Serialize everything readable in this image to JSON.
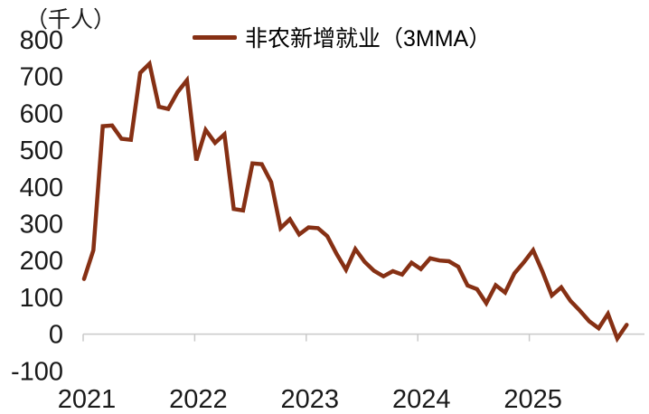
{
  "chart": {
    "unit_label": "（千人）",
    "legend_label": "非农新增就业（3MMA）",
    "line_color": "#863014",
    "axis_color": "#c9c9c9",
    "text_color": "#1a1a1a"
  },
  "chart_data": {
    "type": "line",
    "title": "",
    "xlabel": "",
    "ylabel": "（千人）",
    "legend_position": "top",
    "grid": false,
    "ylim": [
      -100,
      800
    ],
    "y_ticks": [
      800,
      700,
      600,
      500,
      400,
      300,
      200,
      100,
      0,
      -100
    ],
    "x_tick_labels": [
      "2021",
      "2022",
      "2023",
      "2024",
      "2025"
    ],
    "x_start_month": "2021-01",
    "x_end_month": "2025-11",
    "series": [
      {
        "name": "非农新增就业（3MMA）",
        "values": [
          150,
          228,
          565,
          567,
          531,
          528,
          710,
          735,
          618,
          612,
          658,
          690,
          472,
          555,
          520,
          543,
          340,
          336,
          464,
          462,
          413,
          288,
          312,
          271,
          290,
          288,
          266,
          218,
          175,
          231,
          196,
          172,
          157,
          171,
          162,
          194,
          177,
          206,
          200,
          198,
          183,
          132,
          122,
          84,
          133,
          113,
          165,
          195,
          228,
          170,
          105,
          127,
          90,
          64,
          35,
          16,
          55,
          -12,
          25
        ]
      }
    ]
  }
}
